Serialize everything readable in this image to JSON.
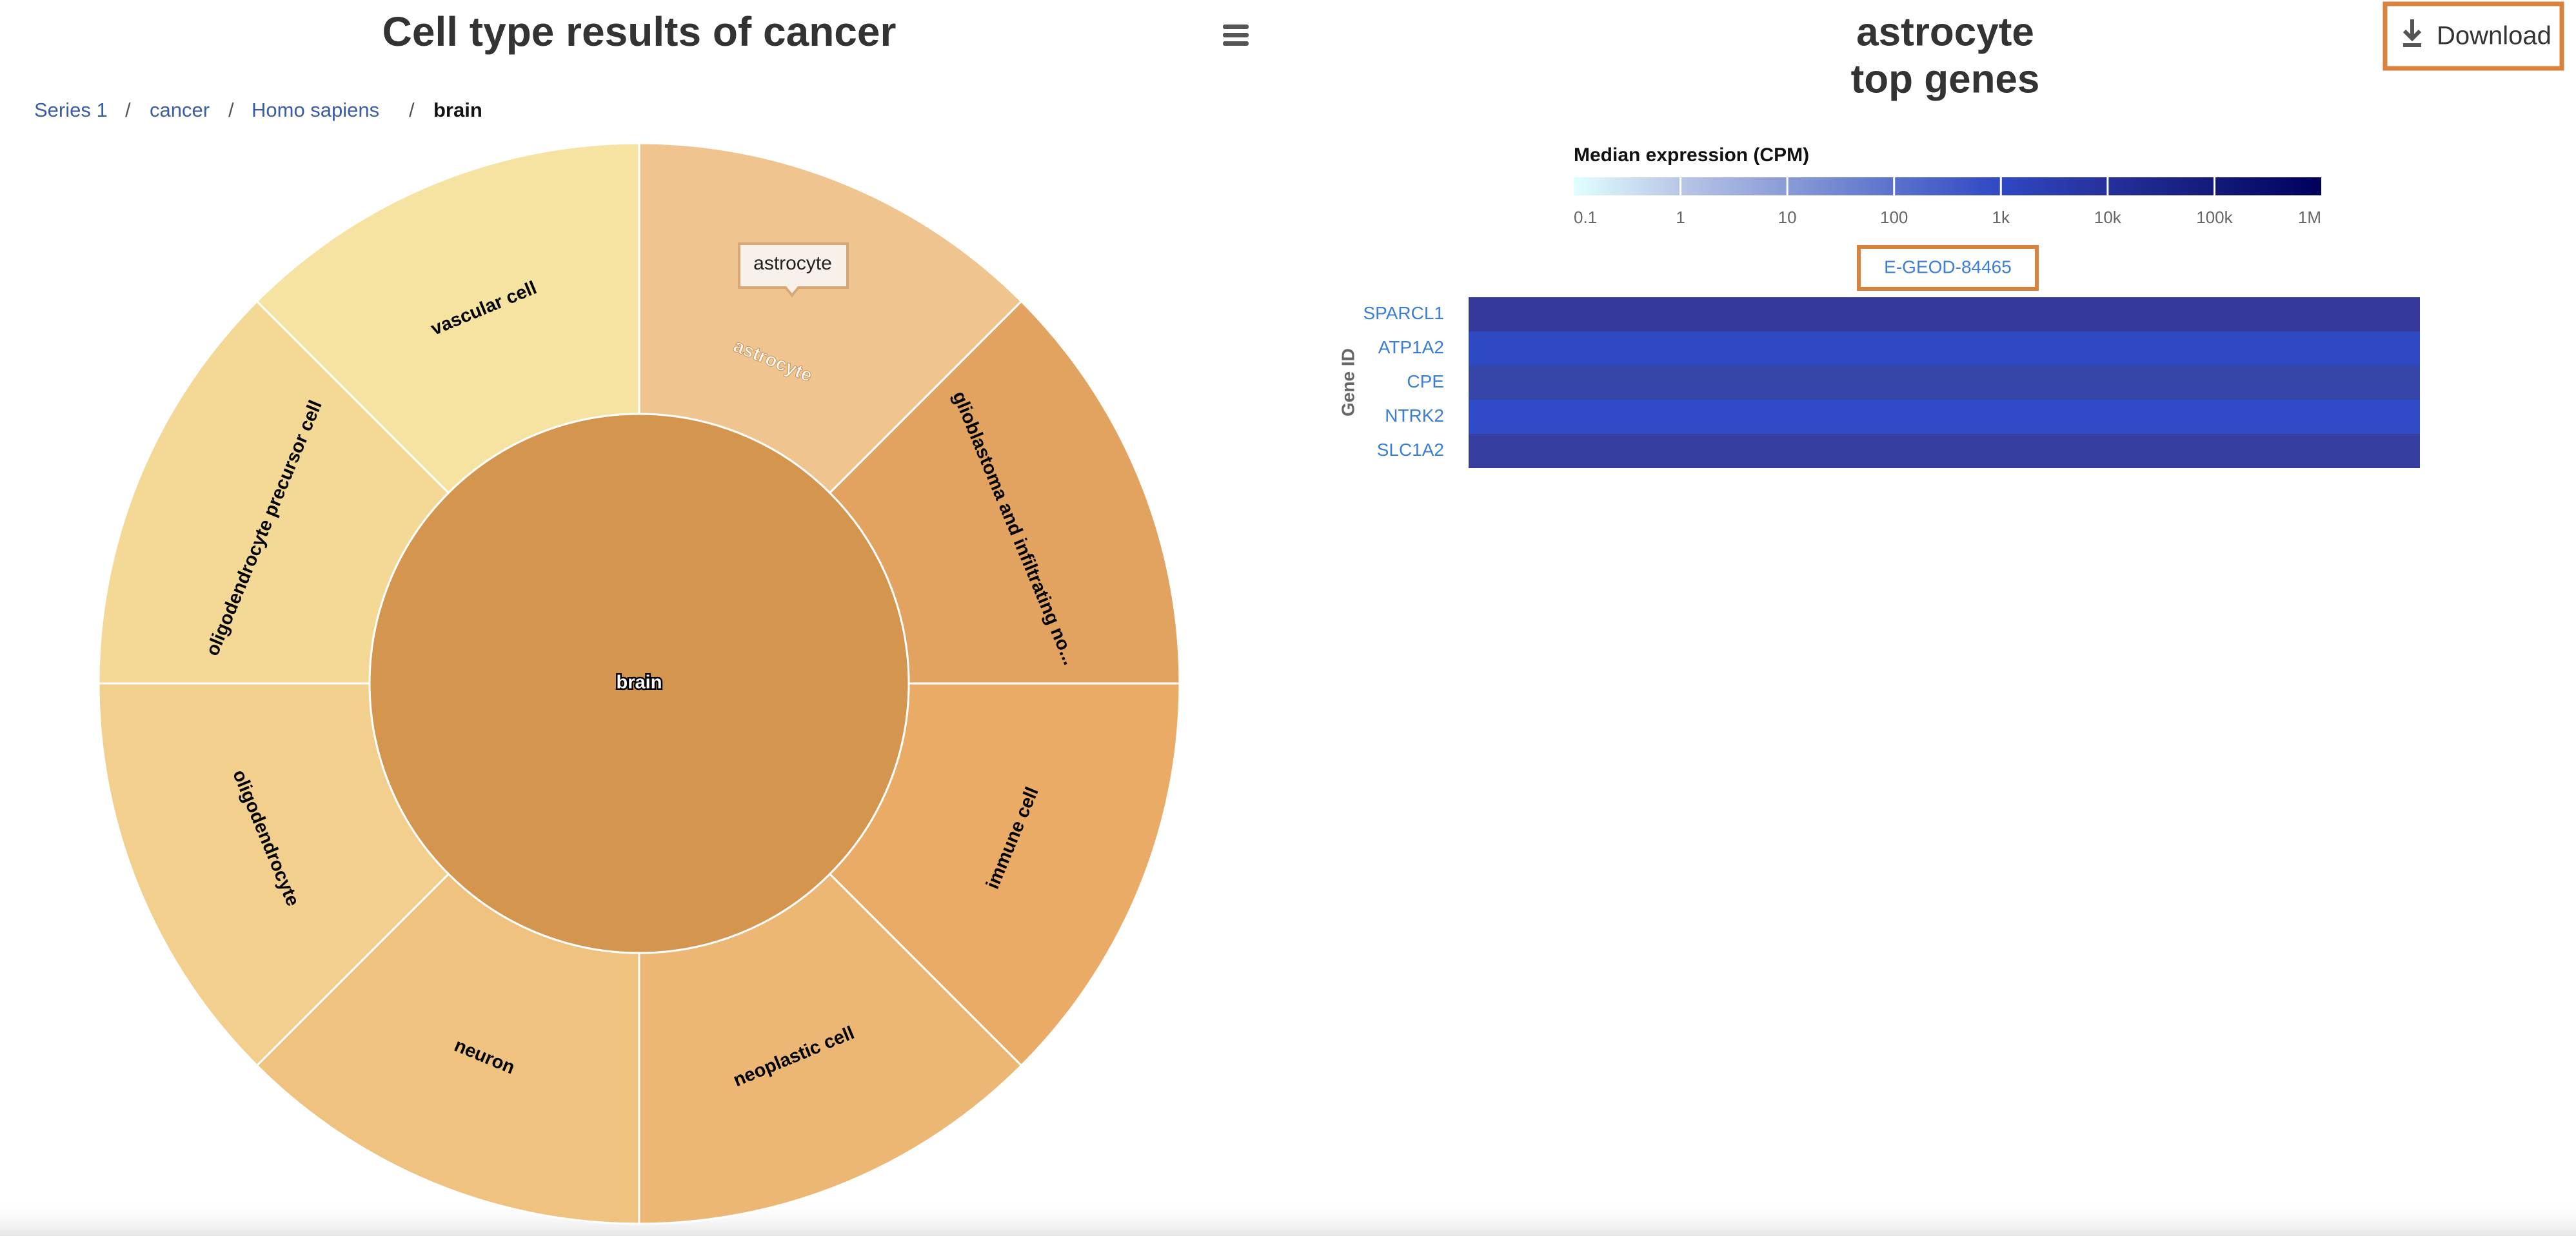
{
  "left": {
    "title": "Cell type results of cancer",
    "breadcrumb": [
      "Series 1",
      "cancer",
      "Homo sapiens",
      "brain"
    ],
    "breadcrumb_separator": "/",
    "center": {
      "label": "brain",
      "color": "#d4954f"
    },
    "slices": [
      {
        "label": "astrocyte",
        "color": "#f0c48e",
        "text_color": "#ffffff"
      },
      {
        "label": "glioblastoma and infiltrating no...",
        "color": "#e2a361",
        "text_color": "#000000"
      },
      {
        "label": "immune cell",
        "color": "#eaab67",
        "text_color": "#000000"
      },
      {
        "label": "neoplastic cell",
        "color": "#ecb775",
        "text_color": "#000000"
      },
      {
        "label": "neuron",
        "color": "#efc27f",
        "text_color": "#000000"
      },
      {
        "label": "oligodendrocyte",
        "color": "#f2cf8c",
        "text_color": "#000000"
      },
      {
        "label": "oligodendrocyte precursor cell",
        "color": "#f4d896",
        "text_color": "#000000"
      },
      {
        "label": "vascular cell",
        "color": "#f6e3a1",
        "text_color": "#000000"
      }
    ],
    "tooltip": "astrocyte"
  },
  "right": {
    "title": [
      "astrocyte",
      "top genes"
    ],
    "download": "Download",
    "legend_title": "Median expression (CPM)",
    "legend_ticks": [
      "0.1",
      "1",
      "10",
      "100",
      "1k",
      "10k",
      "100k",
      "1M"
    ],
    "legend_colors": [
      "#e0ffff",
      "#b9c6e6",
      "#8a9bd6",
      "#5a72cc",
      "#2f47c4",
      "#26309a",
      "#121a7a",
      "#00005c"
    ],
    "experiment": "E-GEOD-84465",
    "axis_label": "Gene ID",
    "genes": [
      {
        "name": "SPARCL1",
        "color": "#353a9a"
      },
      {
        "name": "ATP1A2",
        "color": "#2f49c4"
      },
      {
        "name": "CPE",
        "color": "#3646a8"
      },
      {
        "name": "NTRK2",
        "color": "#2f4ac6"
      },
      {
        "name": "SLC1A2",
        "color": "#353e9e"
      }
    ]
  }
}
